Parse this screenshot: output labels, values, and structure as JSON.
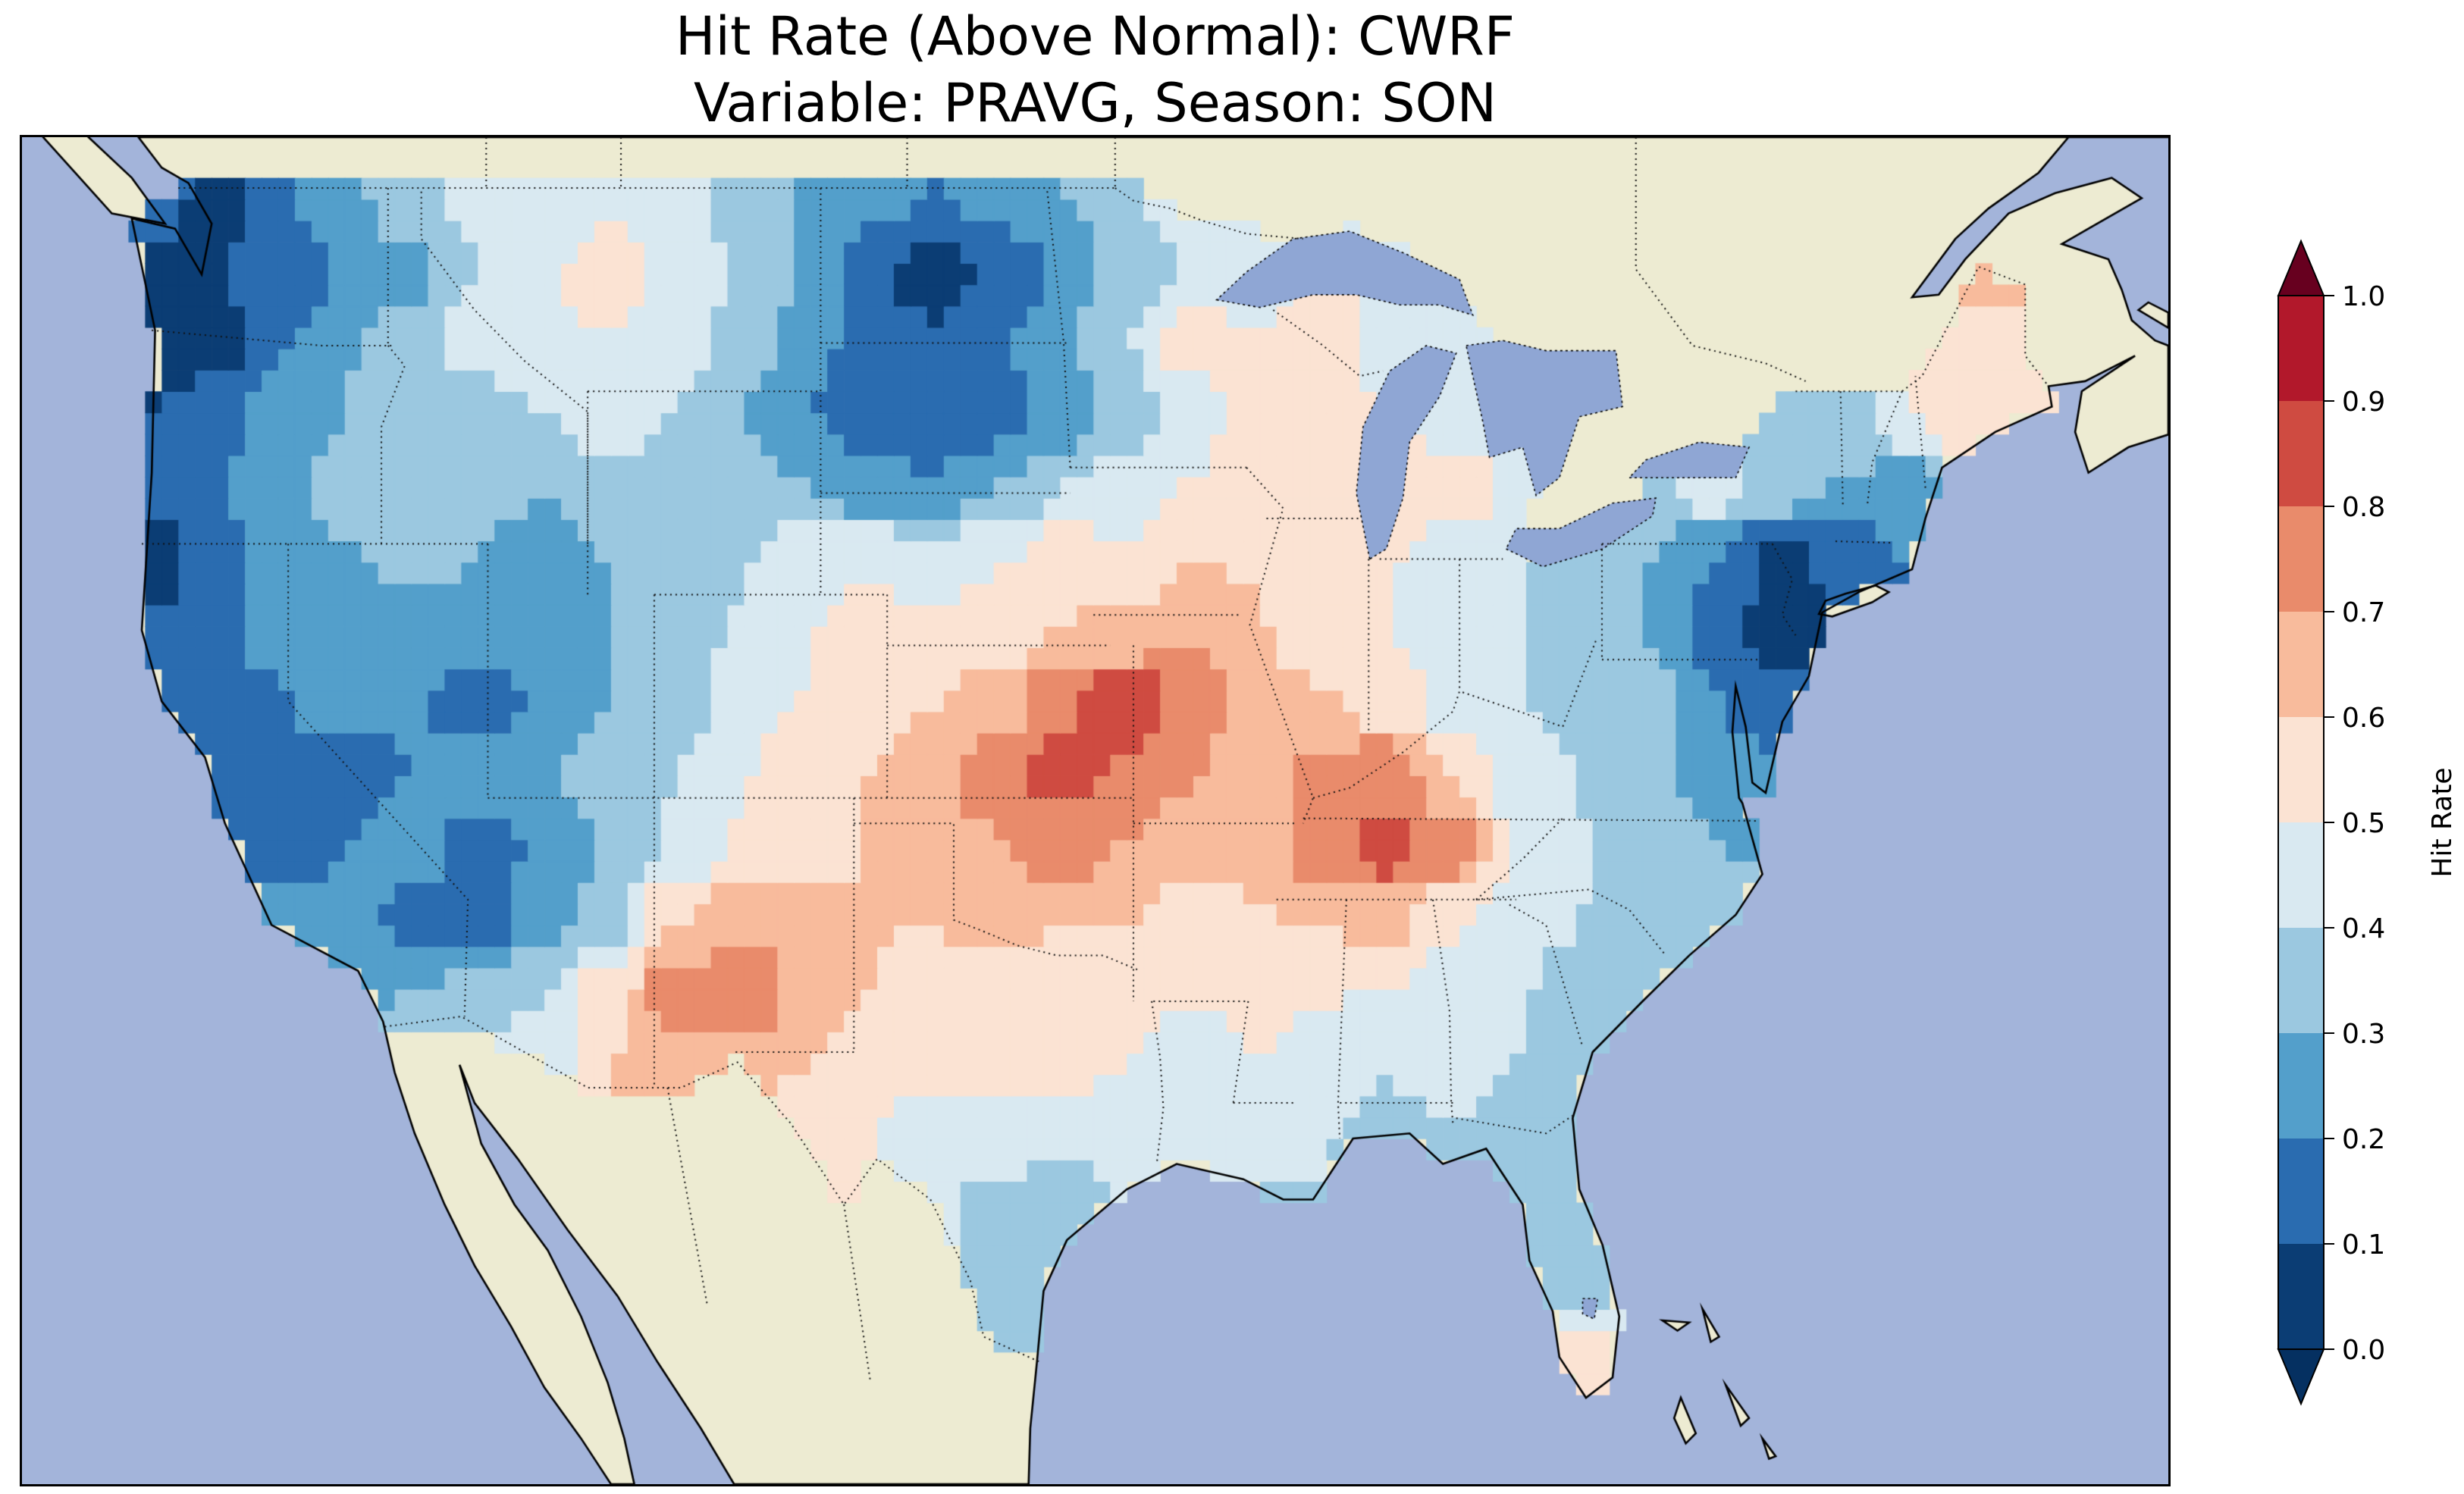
{
  "figure": {
    "title_line1": "Hit Rate (Above Normal): CWRF",
    "title_line2": "Variable: PRAVG, Season: SON"
  },
  "colorbar": {
    "label": "Hit Rate",
    "ticks": [
      "1.0",
      "0.9",
      "0.8",
      "0.7",
      "0.6",
      "0.5",
      "0.4",
      "0.3",
      "0.2",
      "0.1",
      "0.0"
    ],
    "extend_max_color": "#67001f",
    "extend_min_color": "#053061"
  },
  "map_colors": {
    "ocean": "#a3b4da",
    "land": "#edebd2",
    "lake": "#8fa6d4",
    "coastline": "#000000",
    "borders": "#111111",
    "border_style": "dotted"
  },
  "chart_data": {
    "type": "heatmap",
    "title": "Hit Rate (Above Normal): CWRF",
    "subtitle": "Variable: PRAVG, Season: SON",
    "metric": "Hit Rate (Above Normal)",
    "model": "CWRF",
    "variable": "PRAVG",
    "season": "SON",
    "region": "Contiguous United States",
    "colorbar_label": "Hit Rate",
    "value_range": [
      0.0,
      1.0
    ],
    "levels": [
      0.0,
      0.1,
      0.2,
      0.3,
      0.4,
      0.5,
      0.6,
      0.7,
      0.8,
      0.9,
      1.0
    ],
    "colors_low_to_high": [
      "#0b3d74",
      "#2a6cb0",
      "#539fcb",
      "#9bc8e0",
      "#d9e9f1",
      "#fbe3d3",
      "#f8bb9c",
      "#e98b6b",
      "#cf4b41",
      "#b2182b"
    ],
    "legend_position": "right",
    "extent": {
      "lon_min": -128.0,
      "lon_max": -63.5,
      "lat_min": 23.5,
      "lat_max": 50.0
    },
    "grid": {
      "note": "null = masked (outside CONUS, no data); coarse estimate of gridded hit-rate field",
      "lon_west_edge": -125.0,
      "lon_cell_deg": 1.95,
      "lat_north_edge": 49.5,
      "lat_cell_deg": 1.4167,
      "cols": 30,
      "rows": 18,
      "values": [
        [
          0.15,
          0.05,
          0.2,
          0.3,
          0.35,
          0.45,
          0.4,
          0.5,
          0.45,
          0.35,
          0.3,
          0.25,
          0.2,
          0.25,
          0.3,
          0.4,
          0.45,
          0.5,
          null,
          null,
          null,
          null,
          null,
          null,
          null,
          null,
          null,
          null,
          null,
          null
        ],
        [
          0.05,
          0.1,
          0.12,
          0.2,
          0.28,
          0.4,
          0.5,
          0.55,
          0.5,
          0.4,
          0.3,
          0.1,
          0.05,
          0.1,
          0.2,
          0.35,
          0.4,
          0.45,
          null,
          null,
          null,
          null,
          null,
          null,
          null,
          null,
          null,
          0.75,
          0.7,
          null
        ],
        [
          0.02,
          0.05,
          0.2,
          0.3,
          0.35,
          0.45,
          0.5,
          0.5,
          0.45,
          0.35,
          0.25,
          0.15,
          0.1,
          0.2,
          0.3,
          0.4,
          0.55,
          0.5,
          0.6,
          0.45,
          0.4,
          null,
          null,
          null,
          null,
          null,
          null,
          0.6,
          0.55,
          null
        ],
        [
          0.1,
          0.15,
          0.25,
          0.3,
          0.4,
          0.35,
          0.4,
          0.45,
          0.4,
          0.3,
          0.2,
          0.1,
          0.1,
          0.15,
          0.25,
          0.35,
          0.45,
          0.6,
          0.55,
          0.5,
          0.45,
          null,
          null,
          null,
          0.35,
          0.3,
          0.35,
          0.5,
          0.55,
          null
        ],
        [
          0.15,
          0.2,
          0.3,
          0.35,
          0.3,
          0.35,
          0.3,
          0.35,
          0.4,
          0.35,
          0.3,
          0.25,
          0.2,
          0.3,
          0.4,
          0.45,
          0.5,
          0.55,
          0.5,
          0.6,
          0.55,
          null,
          null,
          0.4,
          0.45,
          0.35,
          0.3,
          0.25,
          null,
          null
        ],
        [
          0.05,
          0.15,
          0.25,
          0.3,
          0.35,
          0.3,
          0.2,
          0.3,
          0.35,
          0.4,
          0.45,
          0.5,
          0.45,
          0.5,
          0.55,
          0.5,
          0.6,
          0.6,
          0.55,
          0.5,
          0.45,
          0.4,
          0.35,
          0.3,
          0.2,
          0.05,
          0.1,
          0.2,
          null,
          null
        ],
        [
          0.1,
          0.2,
          0.25,
          0.2,
          0.25,
          0.3,
          0.2,
          0.3,
          0.35,
          0.4,
          0.5,
          0.55,
          0.5,
          0.55,
          0.6,
          0.65,
          0.7,
          0.6,
          0.55,
          0.5,
          0.45,
          0.4,
          0.35,
          0.3,
          0.15,
          0.05,
          null,
          null,
          null,
          null
        ],
        [
          0.15,
          0.1,
          0.2,
          0.25,
          0.2,
          0.15,
          0.2,
          0.3,
          0.35,
          0.45,
          0.5,
          0.55,
          0.6,
          0.65,
          0.8,
          0.9,
          0.75,
          0.65,
          0.6,
          0.55,
          0.45,
          0.4,
          0.35,
          0.35,
          0.2,
          0.15,
          null,
          null,
          null,
          null
        ],
        [
          0.1,
          0.15,
          0.2,
          0.15,
          0.2,
          0.25,
          0.3,
          0.35,
          0.4,
          0.5,
          0.55,
          0.6,
          0.7,
          0.75,
          0.85,
          0.8,
          0.7,
          0.65,
          0.75,
          0.8,
          0.6,
          0.45,
          0.4,
          0.35,
          0.25,
          null,
          null,
          null,
          null,
          null
        ],
        [
          null,
          0.15,
          0.1,
          0.2,
          0.25,
          0.15,
          0.2,
          0.3,
          0.4,
          0.5,
          0.55,
          0.6,
          0.65,
          0.7,
          0.75,
          0.7,
          0.65,
          0.6,
          0.8,
          0.85,
          0.75,
          0.5,
          0.4,
          0.35,
          0.3,
          null,
          null,
          null,
          null,
          null
        ],
        [
          null,
          null,
          0.25,
          0.3,
          0.15,
          0.15,
          0.25,
          0.35,
          0.6,
          0.7,
          0.65,
          0.6,
          0.6,
          0.65,
          0.6,
          0.6,
          0.55,
          0.6,
          0.6,
          0.65,
          0.5,
          0.45,
          0.4,
          0.35,
          null,
          null,
          null,
          null,
          null,
          null
        ],
        [
          null,
          null,
          null,
          0.3,
          0.3,
          0.35,
          0.4,
          0.55,
          0.75,
          0.8,
          0.7,
          0.6,
          0.55,
          0.55,
          0.55,
          0.55,
          0.5,
          0.55,
          0.5,
          0.5,
          0.45,
          0.4,
          0.35,
          null,
          null,
          null,
          null,
          null,
          null,
          null
        ],
        [
          null,
          null,
          null,
          null,
          0.35,
          0.4,
          0.45,
          0.6,
          0.7,
          0.65,
          0.6,
          0.55,
          0.55,
          0.5,
          0.55,
          0.5,
          0.45,
          0.5,
          0.45,
          0.4,
          0.45,
          0.4,
          null,
          null,
          null,
          null,
          null,
          null,
          null,
          null
        ],
        [
          null,
          null,
          null,
          null,
          null,
          null,
          null,
          null,
          null,
          null,
          0.55,
          0.5,
          0.45,
          0.5,
          0.45,
          0.45,
          0.4,
          0.45,
          0.4,
          0.35,
          0.4,
          0.35,
          0.3,
          null,
          null,
          null,
          null,
          null,
          null,
          null
        ],
        [
          null,
          null,
          null,
          null,
          null,
          null,
          null,
          null,
          null,
          null,
          null,
          0.5,
          0.45,
          0.35,
          0.3,
          0.4,
          0.4,
          0.35,
          null,
          null,
          0.35,
          0.35,
          0.3,
          null,
          null,
          null,
          null,
          null,
          null,
          null
        ],
        [
          null,
          null,
          null,
          null,
          null,
          null,
          null,
          null,
          null,
          null,
          null,
          null,
          0.4,
          0.35,
          null,
          null,
          null,
          null,
          null,
          null,
          null,
          0.3,
          0.3,
          null,
          null,
          null,
          null,
          null,
          null,
          null
        ],
        [
          null,
          null,
          null,
          null,
          null,
          null,
          null,
          null,
          null,
          null,
          null,
          null,
          null,
          0.3,
          null,
          null,
          null,
          null,
          null,
          null,
          null,
          0.3,
          0.55,
          null,
          null,
          null,
          null,
          null,
          null,
          null
        ],
        [
          null,
          null,
          null,
          null,
          null,
          null,
          null,
          null,
          null,
          null,
          null,
          null,
          null,
          null,
          null,
          null,
          null,
          null,
          null,
          null,
          null,
          null,
          0.55,
          null,
          null,
          null,
          null,
          null,
          null,
          null
        ]
      ]
    }
  }
}
